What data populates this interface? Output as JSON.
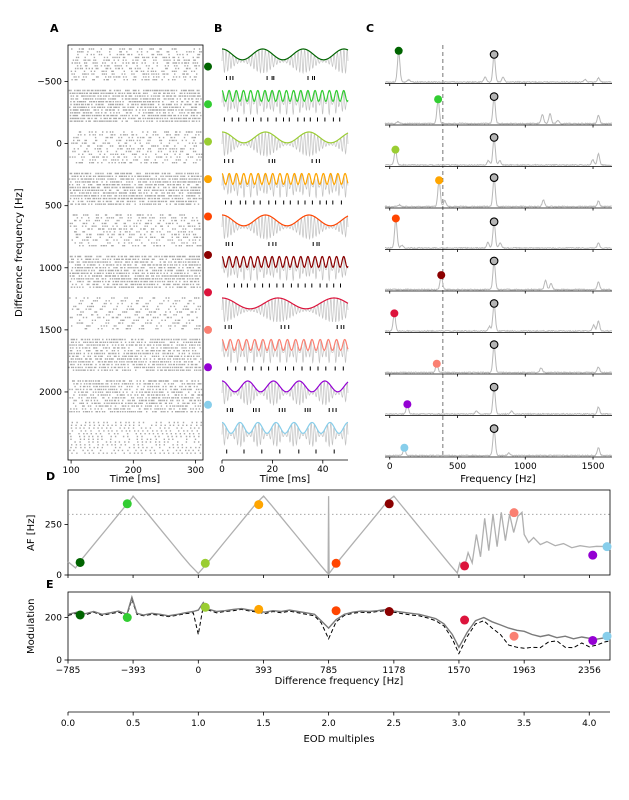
{
  "panelA": {
    "label": "A",
    "xlabel": "Time [ms]",
    "ylabel": "Difference frequency [Hz]",
    "xticks": [
      100,
      200,
      300
    ],
    "yticks": [
      -500,
      0,
      500,
      1000,
      1500,
      2000
    ],
    "xlim": [
      95,
      312
    ],
    "ylim": [
      -794,
      2548
    ],
    "marker_freqs_hz": [
      -620,
      -317,
      -16,
      286,
      587,
      897,
      1198,
      1500,
      1801,
      2103
    ],
    "raster": {
      "blocks": 10,
      "rows_per_block": 12,
      "seed": 7
    }
  },
  "panelB": {
    "label": "B",
    "xlabel": "Time [ms]",
    "xticks": [
      0,
      20,
      40
    ],
    "duration_ms": 50,
    "carrier_hz": 770
  },
  "panelC": {
    "label": "C",
    "xlabel": "Frequency [Hz]",
    "xticks": [
      0,
      500,
      1000,
      1500
    ],
    "xlim": [
      -35,
      1640
    ],
    "dashed_vline_hz": 392,
    "eod_hz": 770
  },
  "panelD": {
    "label": "D",
    "ylabel": "AF [Hz]",
    "yticks": [
      0,
      250
    ],
    "ylim": [
      0,
      420
    ],
    "dotted_hline": 300
  },
  "panelE": {
    "label": "E",
    "ylabel": "Modulation",
    "xlabel": "Difference frequency [Hz]",
    "yticks": [
      0,
      200
    ],
    "ylim": [
      0,
      320
    ],
    "xticks": [
      -785,
      -393,
      0,
      393,
      785,
      1178,
      1570,
      1963,
      2356
    ],
    "xlim": [
      -785,
      2480
    ]
  },
  "eod_axis": {
    "xlabel": "EOD multiples",
    "xticks": [
      0,
      0.5,
      1,
      1.5,
      2,
      2.5,
      3,
      3.5,
      4
    ]
  },
  "conditions": [
    {
      "color": "#006400",
      "dhz": -712,
      "af": 62,
      "mod": 212
    },
    {
      "color": "#32cd32",
      "dhz": -428,
      "af": 352,
      "mod": 200
    },
    {
      "color": "#9acd32",
      "dhz": 42,
      "af": 58,
      "mod": 248
    },
    {
      "color": "#ffa500",
      "dhz": 364,
      "af": 348,
      "mod": 238
    },
    {
      "color": "#ff4500",
      "dhz": 830,
      "af": 58,
      "mod": 232
    },
    {
      "color": "#8b0000",
      "dhz": 1150,
      "af": 352,
      "mod": 228
    },
    {
      "color": "#dc143c",
      "dhz": 1604,
      "af": 45,
      "mod": 188
    },
    {
      "color": "#fa8072",
      "dhz": 1902,
      "af": 308,
      "mod": 112
    },
    {
      "color": "#9400d3",
      "dhz": 2376,
      "af": 98,
      "mod": 92
    },
    {
      "color": "#87ceeb",
      "dhz": 2462,
      "af": 140,
      "mod": 112
    }
  ],
  "chart_data": {
    "panel_B": {
      "type": "line",
      "carrier_hz": 770,
      "duration_ms": 50,
      "note": "AM envelope frequency per row equals conditions[i].af"
    },
    "panel_C": {
      "type": "line",
      "eod_hz": 770,
      "rows": [
        {
          "dot_hz": 66,
          "peaks": [
            [
              66,
              0.93
            ],
            [
              140,
              0.07
            ],
            [
              704,
              0.16
            ],
            [
              770,
              0.82
            ],
            [
              836,
              0.16
            ],
            [
              1440,
              0.08
            ],
            [
              1540,
              0.12
            ]
          ]
        },
        {
          "dot_hz": 357,
          "peaks": [
            [
              60,
              0.06
            ],
            [
              357,
              0.72
            ],
            [
              770,
              0.8
            ],
            [
              1127,
              0.28
            ],
            [
              1183,
              0.3
            ],
            [
              1240,
              0.1
            ],
            [
              1540,
              0.24
            ]
          ]
        },
        {
          "dot_hz": 42,
          "peaks": [
            [
              42,
              0.45
            ],
            [
              728,
              0.14
            ],
            [
              770,
              0.82
            ],
            [
              812,
              0.14
            ],
            [
              1498,
              0.17
            ],
            [
              1540,
              0.34
            ]
          ]
        },
        {
          "dot_hz": 364,
          "peaks": [
            [
              70,
              0.05
            ],
            [
              364,
              0.78
            ],
            [
              406,
              0.18
            ],
            [
              770,
              0.86
            ],
            [
              1134,
              0.2
            ],
            [
              1540,
              0.16
            ]
          ]
        },
        {
          "dot_hz": 45,
          "peaks": [
            [
              45,
              0.88
            ],
            [
              90,
              0.08
            ],
            [
              725,
              0.18
            ],
            [
              770,
              0.78
            ],
            [
              815,
              0.16
            ],
            [
              1540,
              0.14
            ]
          ]
        },
        {
          "dot_hz": 380,
          "peaks": [
            [
              380,
              0.42
            ],
            [
              770,
              0.85
            ],
            [
              1150,
              0.28
            ],
            [
              1190,
              0.18
            ],
            [
              1540,
              0.22
            ]
          ]
        },
        {
          "dot_hz": 34,
          "peaks": [
            [
              34,
              0.52
            ],
            [
              736,
              0.14
            ],
            [
              770,
              0.82
            ],
            [
              1505,
              0.18
            ],
            [
              1540,
              0.3
            ]
          ]
        },
        {
          "dot_hz": 347,
          "peaks": [
            [
              347,
              0.25
            ],
            [
              770,
              0.83
            ],
            [
              1117,
              0.14
            ],
            [
              1540,
              0.17
            ]
          ]
        },
        {
          "dot_hz": 130,
          "peaks": [
            [
              130,
              0.28
            ],
            [
              640,
              0.1
            ],
            [
              770,
              0.8
            ],
            [
              900,
              0.1
            ],
            [
              1540,
              0.21
            ]
          ]
        },
        {
          "dot_hz": 108,
          "peaks": [
            [
              108,
              0.22
            ],
            [
              770,
              0.8
            ],
            [
              878,
              0.08
            ],
            [
              1540,
              0.24
            ]
          ]
        }
      ]
    },
    "panel_D": {
      "type": "line",
      "xlabel": "Difference frequency [Hz]",
      "ylabel": "AF [Hz]",
      "xlim": [
        -785,
        2480
      ],
      "ylim": [
        0,
        420
      ],
      "x": [
        -785,
        -740,
        -700,
        -650,
        -600,
        -550,
        -500,
        -450,
        -400,
        -393,
        -350,
        -300,
        -250,
        -200,
        -150,
        -100,
        -50,
        0,
        50,
        100,
        150,
        200,
        250,
        300,
        350,
        393,
        440,
        490,
        540,
        590,
        640,
        690,
        740,
        775,
        782,
        785,
        788,
        795,
        840,
        890,
        940,
        990,
        1040,
        1090,
        1140,
        1178,
        1220,
        1270,
        1320,
        1370,
        1420,
        1470,
        1520,
        1560,
        1575,
        1600,
        1625,
        1650,
        1675,
        1700,
        1725,
        1750,
        1775,
        1800,
        1825,
        1850,
        1875,
        1900,
        1925,
        1950,
        1963,
        1990,
        2020,
        2060,
        2100,
        2150,
        2200,
        2250,
        2300,
        2356,
        2400,
        2450,
        2480
      ],
      "y": [
        65,
        35,
        80,
        130,
        180,
        230,
        280,
        330,
        380,
        390,
        348,
        298,
        248,
        198,
        148,
        98,
        50,
        8,
        55,
        105,
        155,
        205,
        255,
        305,
        355,
        390,
        345,
        295,
        245,
        195,
        145,
        95,
        45,
        12,
        8,
        390,
        8,
        15,
        65,
        115,
        165,
        215,
        265,
        315,
        365,
        390,
        348,
        298,
        248,
        198,
        148,
        98,
        48,
        10,
        60,
        30,
        110,
        60,
        200,
        90,
        280,
        120,
        300,
        140,
        310,
        170,
        300,
        210,
        290,
        310,
        200,
        160,
        185,
        150,
        165,
        145,
        155,
        135,
        145,
        138,
        142,
        141,
        140
      ]
    },
    "panel_E": {
      "type": "line",
      "ylabel": "Modulation",
      "xlim": [
        -785,
        2480
      ],
      "ylim": [
        0,
        320
      ],
      "x": [
        -785,
        -730,
        -680,
        -630,
        -580,
        -530,
        -480,
        -430,
        -400,
        -370,
        -330,
        -280,
        -230,
        -180,
        -130,
        -80,
        -30,
        0,
        30,
        60,
        110,
        160,
        210,
        260,
        310,
        360,
        400,
        450,
        500,
        550,
        600,
        650,
        700,
        740,
        785,
        830,
        880,
        930,
        980,
        1030,
        1080,
        1130,
        1178,
        1230,
        1280,
        1330,
        1380,
        1430,
        1480,
        1530,
        1570,
        1620,
        1670,
        1720,
        1770,
        1820,
        1870,
        1920,
        1963,
        2010,
        2060,
        2110,
        2160,
        2210,
        2260,
        2310,
        2356,
        2400,
        2450,
        2480
      ],
      "series": [
        {
          "name": "measured",
          "y": [
            215,
            225,
            218,
            228,
            215,
            222,
            230,
            215,
            295,
            220,
            212,
            220,
            215,
            208,
            214,
            222,
            228,
            235,
            270,
            240,
            228,
            232,
            238,
            242,
            235,
            230,
            225,
            232,
            228,
            235,
            228,
            222,
            215,
            185,
            150,
            190,
            215,
            225,
            230,
            228,
            232,
            238,
            230,
            225,
            220,
            215,
            205,
            195,
            170,
            120,
            60,
            130,
            185,
            200,
            180,
            165,
            150,
            140,
            135,
            120,
            110,
            118,
            105,
            112,
            100,
            108,
            102,
            98,
            105,
            110
          ]
        },
        {
          "name": "expected-dashed",
          "y": [
            210,
            220,
            212,
            225,
            210,
            218,
            225,
            210,
            285,
            215,
            208,
            215,
            210,
            204,
            210,
            218,
            222,
            120,
            255,
            235,
            222,
            228,
            232,
            238,
            230,
            225,
            218,
            228,
            222,
            230,
            222,
            215,
            208,
            175,
            100,
            180,
            210,
            220,
            225,
            222,
            228,
            232,
            225,
            218,
            212,
            208,
            198,
            185,
            160,
            100,
            30,
            110,
            170,
            185,
            150,
            120,
            70,
            60,
            55,
            60,
            58,
            85,
            90,
            60,
            58,
            80,
            62,
            70,
            85,
            90
          ]
        }
      ]
    }
  }
}
